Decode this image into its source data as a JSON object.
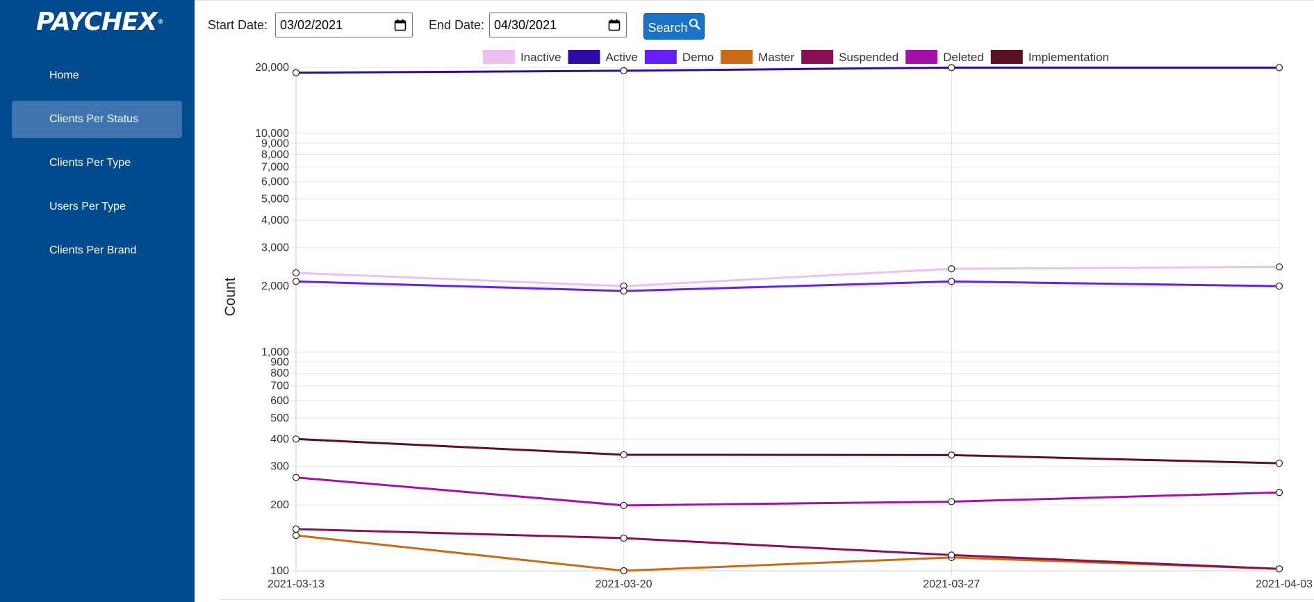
{
  "brand": {
    "name": "PAYCHEX",
    "reg_mark": "®"
  },
  "sidebar": {
    "items": [
      {
        "label": "Home",
        "active": false
      },
      {
        "label": "Clients Per Status",
        "active": true
      },
      {
        "label": "Clients Per Type",
        "active": false
      },
      {
        "label": "Users Per Type",
        "active": false
      },
      {
        "label": "Clients Per Brand",
        "active": false
      }
    ]
  },
  "filters": {
    "start_label": "Start Date:",
    "start_value": "03/02/2021",
    "end_label": "End Date:",
    "end_value": "04/30/2021",
    "search_label": "Search",
    "calendar_icon": "calendar-icon",
    "search_icon": "magnifier-icon"
  },
  "colors": {
    "sidebar_bg": "#004b8d",
    "sidebar_active": "#3f74ae",
    "button_bg": "#1a73c8"
  },
  "chart_data": {
    "type": "line",
    "title": "",
    "xlabel": "",
    "ylabel": "Count",
    "y_scale": "log",
    "ylim": [
      100,
      20000
    ],
    "grid": true,
    "legend_position": "top",
    "x": [
      "2021-03-13",
      "2021-03-20",
      "2021-03-27",
      "2021-04-03"
    ],
    "y_ticks": [
      100,
      200,
      300,
      400,
      500,
      600,
      700,
      800,
      900,
      1000,
      2000,
      3000,
      4000,
      5000,
      6000,
      7000,
      8000,
      9000,
      10000,
      20000
    ],
    "y_tick_labels": [
      "100",
      "200",
      "300",
      "400",
      "500",
      "600",
      "700",
      "800",
      "900",
      "1,000",
      "2,000",
      "3,000",
      "4,000",
      "5,000",
      "6,000",
      "7,000",
      "8,000",
      "9,000",
      "10,000",
      "20,000"
    ],
    "series": [
      {
        "name": "Inactive",
        "color": "#ebc1f1",
        "values": [
          2300,
          2000,
          2400,
          2450
        ]
      },
      {
        "name": "Active",
        "color": "#2e0ca3",
        "values": [
          18900,
          19300,
          19950,
          19950
        ]
      },
      {
        "name": "Demo",
        "color": "#6420f5",
        "values": [
          2100,
          1900,
          2100,
          2000
        ]
      },
      {
        "name": "Master",
        "color": "#c96b16",
        "values": [
          145,
          100,
          115,
          102
        ]
      },
      {
        "name": "Suspended",
        "color": "#8a0f55",
        "values": [
          155,
          141,
          118,
          102
        ]
      },
      {
        "name": "Deleted",
        "color": "#a012a8",
        "values": [
          267,
          199,
          207,
          228
        ]
      },
      {
        "name": "Implementation",
        "color": "#5c1024",
        "values": [
          400,
          339,
          338,
          310
        ]
      }
    ]
  }
}
